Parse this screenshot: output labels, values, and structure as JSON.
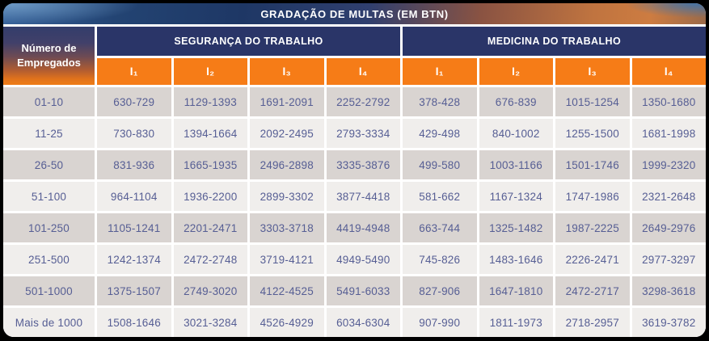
{
  "chart_data": {
    "type": "table",
    "title": "GRADAÇÃO DE MULTAS (EM BTN)",
    "row_header": "Número de Empregados",
    "column_groups": [
      "SEGURANÇA DO TRABALHO",
      "MEDICINA DO TRABALHO"
    ],
    "sub_columns": [
      "I₁",
      "I₂",
      "I₃",
      "I₄",
      "I₁",
      "I₂",
      "I₃",
      "I₄"
    ],
    "rows": [
      {
        "employees": "01-10",
        "values": [
          "630-729",
          "1129-1393",
          "1691-2091",
          "2252-2792",
          "378-428",
          "676-839",
          "1015-1254",
          "1350-1680"
        ]
      },
      {
        "employees": "11-25",
        "values": [
          "730-830",
          "1394-1664",
          "2092-2495",
          "2793-3334",
          "429-498",
          "840-1002",
          "1255-1500",
          "1681-1998"
        ]
      },
      {
        "employees": "26-50",
        "values": [
          "831-936",
          "1665-1935",
          "2496-2898",
          "3335-3876",
          "499-580",
          "1003-1166",
          "1501-1746",
          "1999-2320"
        ]
      },
      {
        "employees": "51-100",
        "values": [
          "964-1104",
          "1936-2200",
          "2899-3302",
          "3877-4418",
          "581-662",
          "1167-1324",
          "1747-1986",
          "2321-2648"
        ]
      },
      {
        "employees": "101-250",
        "values": [
          "1105-1241",
          "2201-2471",
          "3303-3718",
          "4419-4948",
          "663-744",
          "1325-1482",
          "1987-2225",
          "2649-2976"
        ]
      },
      {
        "employees": "251-500",
        "values": [
          "1242-1374",
          "2472-2748",
          "3719-4121",
          "4949-5490",
          "745-826",
          "1483-1646",
          "2226-2471",
          "2977-3297"
        ]
      },
      {
        "employees": "501-1000",
        "values": [
          "1375-1507",
          "2749-3020",
          "4122-4525",
          "5491-6033",
          "827-906",
          "1647-1810",
          "2472-2717",
          "3298-3618"
        ]
      },
      {
        "employees": "Mais de 1000",
        "values": [
          "1508-1646",
          "3021-3284",
          "4526-4929",
          "6034-6304",
          "907-990",
          "1811-1973",
          "2718-2957",
          "3619-3782"
        ]
      }
    ],
    "colors": {
      "header_navy": "#2a3568",
      "subheader_orange": "#f67c17",
      "row_dark": "#d9d4d1",
      "row_light": "#f0eeec",
      "cell_text": "#565e94"
    }
  }
}
